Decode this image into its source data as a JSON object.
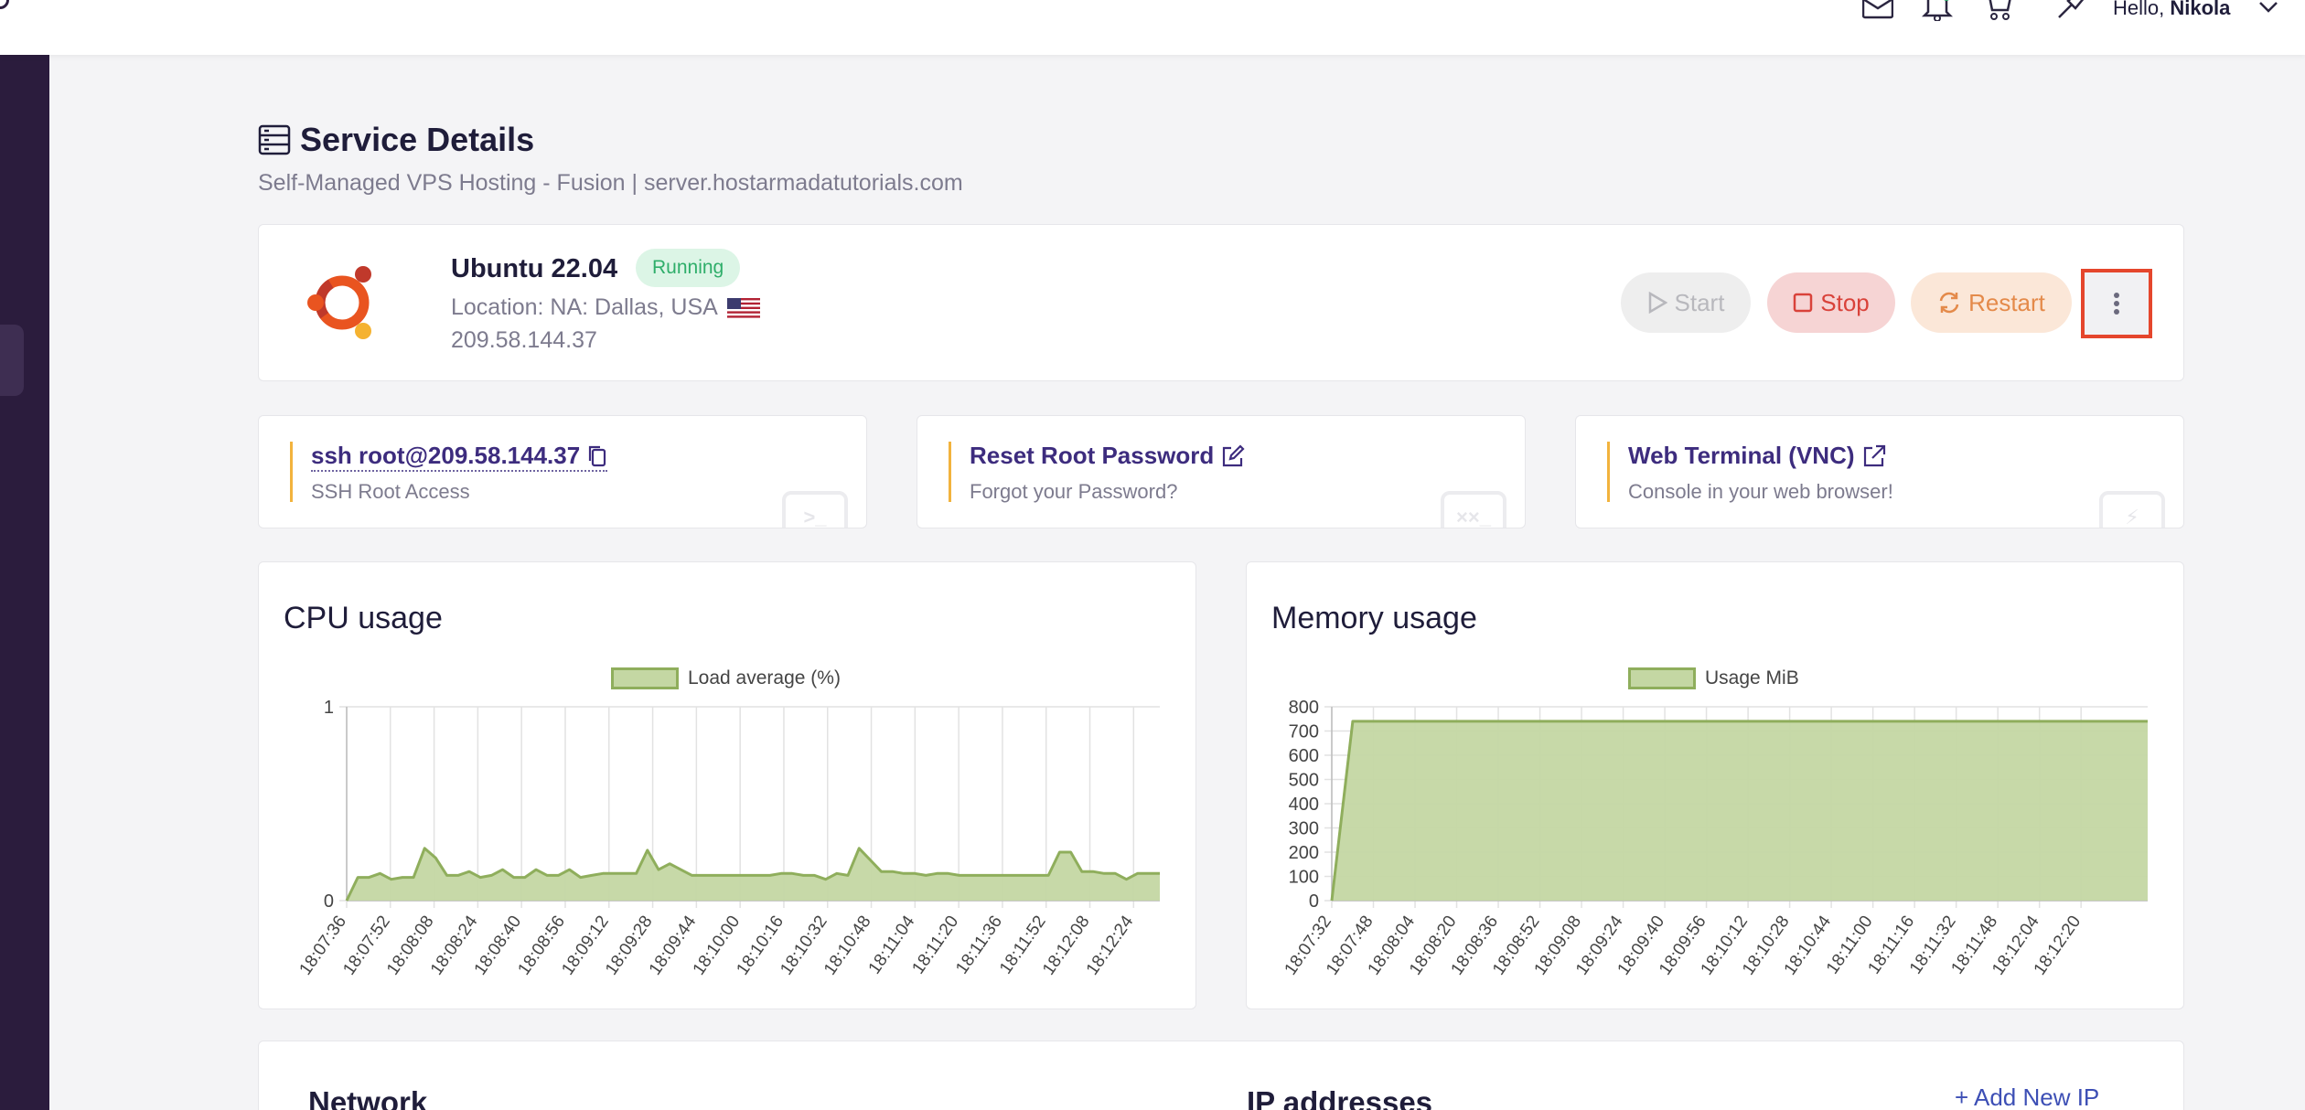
{
  "topbar": {
    "greeting_prefix": "Hello,",
    "user_name": "Nikola",
    "icons": [
      "mail-icon",
      "bell-icon",
      "cart-icon",
      "pin-icon",
      "chevron-down-icon"
    ]
  },
  "page": {
    "title": "Service Details",
    "subtitle": "Self-Managed VPS Hosting - Fusion | server.hostarmadatutorials.com"
  },
  "server": {
    "os": "Ubuntu 22.04",
    "status": "Running",
    "location": "Location: NA: Dallas, USA",
    "ip": "209.58.144.37",
    "buttons": {
      "start": "Start",
      "stop": "Stop",
      "restart": "Restart"
    },
    "colors": {
      "running": "#2fae6a",
      "stop": "#d9423a",
      "restart": "#e48a4a",
      "highlight": "#e5462c"
    }
  },
  "quick_actions": [
    {
      "title": "ssh root@209.58.144.37",
      "sub": "SSH Root Access",
      "deco": ">_"
    },
    {
      "title": "Reset Root Password",
      "sub": "Forgot your Password?",
      "deco": "××_"
    },
    {
      "title": "Web Terminal (VNC)",
      "sub": "Console in your web browser!",
      "deco": "⚡"
    }
  ],
  "chart_data": [
    {
      "type": "area",
      "title": "CPU usage",
      "series": [
        {
          "name": "Load average (%)",
          "color": "#8fae5c",
          "fill": "#c4d7a3",
          "values": [
            0,
            0.12,
            0.12,
            0.14,
            0.11,
            0.12,
            0.12,
            0.27,
            0.22,
            0.13,
            0.13,
            0.15,
            0.12,
            0.13,
            0.16,
            0.12,
            0.12,
            0.16,
            0.13,
            0.13,
            0.16,
            0.12,
            0.13,
            0.14,
            0.14,
            0.14,
            0.14,
            0.26,
            0.16,
            0.19,
            0.16,
            0.13,
            0.13,
            0.13,
            0.13,
            0.13,
            0.13,
            0.13,
            0.13,
            0.14,
            0.14,
            0.13,
            0.13,
            0.11,
            0.14,
            0.13,
            0.27,
            0.21,
            0.15,
            0.15,
            0.14,
            0.14,
            0.13,
            0.14,
            0.14,
            0.13,
            0.13,
            0.13,
            0.13,
            0.13,
            0.13,
            0.13,
            0.13,
            0.13,
            0.25,
            0.25,
            0.15,
            0.15,
            0.14,
            0.14,
            0.11,
            0.14,
            0.14,
            0.14
          ]
        }
      ],
      "x_ticks": [
        "18:07:36",
        "18:07:52",
        "18:08:08",
        "18:08:24",
        "18:08:40",
        "18:08:56",
        "18:09:12",
        "18:09:28",
        "18:09:44",
        "18:10:00",
        "18:10:16",
        "18:10:32",
        "18:10:48",
        "18:11:04",
        "18:11:20",
        "18:11:36",
        "18:11:52",
        "18:12:08",
        "18:12:24"
      ],
      "ylim": [
        0,
        1
      ],
      "y_ticks": [
        0,
        1
      ],
      "grid": true,
      "legend": "top-center"
    },
    {
      "type": "area",
      "title": "Memory usage",
      "series": [
        {
          "name": "Usage MiB",
          "color": "#8fae5c",
          "fill": "#c4d7a3",
          "values": [
            0,
            740,
            740,
            740,
            740,
            740,
            740,
            740,
            740,
            740,
            740,
            740,
            740,
            740,
            740,
            740,
            740,
            740,
            740,
            740,
            740,
            740,
            740,
            740,
            740,
            740,
            740,
            740,
            740,
            740,
            740,
            740,
            740,
            740,
            740,
            740,
            740,
            740,
            740,
            740
          ]
        }
      ],
      "x_ticks": [
        "18:07:32",
        "18:07:48",
        "18:08:04",
        "18:08:20",
        "18:08:36",
        "18:08:52",
        "18:09:08",
        "18:09:24",
        "18:09:40",
        "18:09:56",
        "18:10:12",
        "18:10:28",
        "18:10:44",
        "18:11:00",
        "18:11:16",
        "18:11:32",
        "18:11:48",
        "18:12:04",
        "18:12:20"
      ],
      "ylim": [
        0,
        800
      ],
      "y_ticks": [
        0,
        100,
        200,
        300,
        400,
        500,
        600,
        700,
        800
      ],
      "grid": true,
      "legend": "top-center"
    }
  ],
  "bottom": {
    "network_title": "Network",
    "ip_title": "IP addresses",
    "add_ip": "+ Add New IP"
  }
}
